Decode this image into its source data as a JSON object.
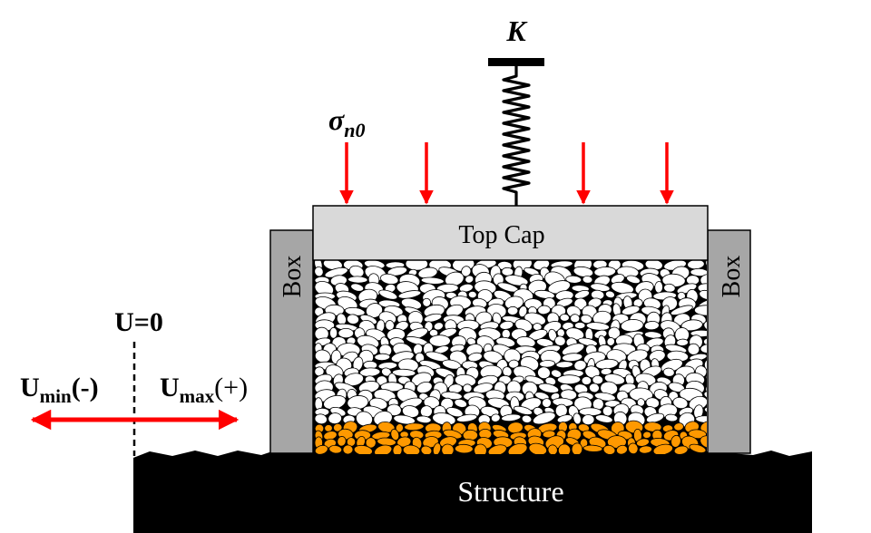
{
  "labels": {
    "spring_constant": "K",
    "normal_stress_symbol": "σ",
    "normal_stress_subscript": "n0",
    "top_cap": "Top Cap",
    "box_left": "Box",
    "box_right": "Box",
    "structure": "Structure",
    "u_zero": "U=0",
    "u_min_main": "U",
    "u_min_sub": "min",
    "u_min_sign": "(-)",
    "u_max_main": "U",
    "u_max_sub": "max",
    "u_max_sign": "(+)"
  },
  "colors": {
    "arrow": "#ff0000",
    "box": "#a6a6a6",
    "top_cap": "#d9d9d9",
    "structure": "#000000",
    "particle_white": "#ffffff",
    "particle_orange": "#ff9900",
    "particle_outline": "#000000"
  }
}
